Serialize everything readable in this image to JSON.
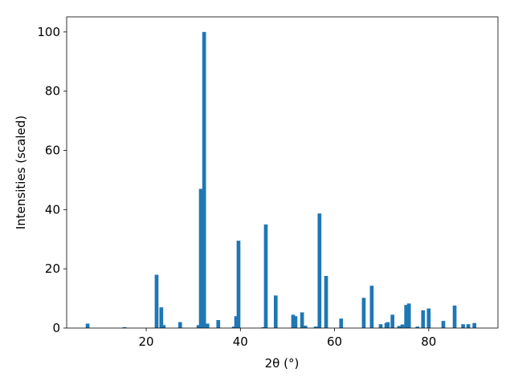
{
  "chart_data": {
    "type": "bar",
    "xlabel": "2θ (°)",
    "ylabel": "Intensities (scaled)",
    "color": "#1f77b4",
    "bar_width": 0.8,
    "x": [
      7.55,
      15.4,
      22.2,
      23.2,
      23.7,
      27.2,
      31.1,
      31.6,
      32.3,
      33.0,
      35.3,
      38.6,
      39.1,
      39.6,
      44.9,
      45.4,
      47.5,
      51.2,
      51.7,
      53.1,
      53.8,
      56.0,
      56.8,
      58.2,
      61.4,
      66.2,
      67.9,
      69.8,
      71.0,
      71.3,
      72.3,
      73.7,
      74.4,
      75.2,
      75.8,
      77.6,
      78.8,
      80.0,
      83.1,
      85.5,
      87.3,
      88.4,
      89.7
    ],
    "values": [
      1.5,
      0.3,
      18,
      7,
      1,
      2,
      1,
      47,
      100,
      1.5,
      2.7,
      0.5,
      4,
      29.5,
      0.3,
      35,
      11,
      4.5,
      4,
      5.3,
      0.8,
      0.5,
      38.7,
      17.6,
      3.2,
      10.2,
      14.3,
      1.3,
      1.7,
      2,
      4.5,
      0.7,
      1.2,
      7.8,
      8.3,
      0.5,
      6,
      6.6,
      2.4,
      7.6,
      1.3,
      1.3,
      1.7
    ],
    "xlim": [
      3.1,
      94.7
    ],
    "ylim": [
      0,
      105.1
    ],
    "xticks": [
      20,
      40,
      60,
      80
    ],
    "yticks": [
      0,
      20,
      40,
      60,
      80,
      100
    ]
  }
}
